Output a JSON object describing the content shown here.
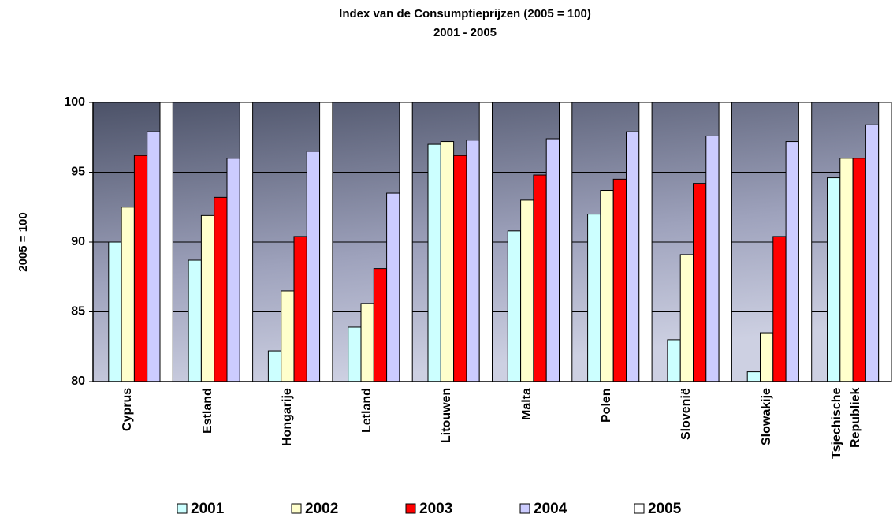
{
  "chart_data": {
    "type": "bar",
    "title": "Index van de Consumptieprijzen (2005 = 100)",
    "subtitle": "2001 - 2005",
    "y_label": "2005 = 100",
    "categories": [
      "Cyprus",
      "Estland",
      "Hongarije",
      "Letland",
      "Litouwen",
      "Malta",
      "Polen",
      "Slovenië",
      "Slowakije",
      "Tsjechische Republiek"
    ],
    "series": [
      {
        "name": "2001",
        "color": "#ccffff",
        "values": [
          90.0,
          88.7,
          82.2,
          83.9,
          97.0,
          90.8,
          92.0,
          83.0,
          80.7,
          94.6
        ]
      },
      {
        "name": "2002",
        "color": "#ffffcc",
        "values": [
          92.5,
          91.9,
          86.5,
          85.6,
          97.2,
          93.0,
          93.7,
          89.1,
          83.5,
          96.0
        ]
      },
      {
        "name": "2003",
        "color": "#ff0000",
        "values": [
          96.2,
          93.2,
          90.4,
          88.1,
          96.2,
          94.8,
          94.5,
          94.2,
          90.4,
          96.0
        ]
      },
      {
        "name": "2004",
        "color": "#ccccff",
        "values": [
          97.9,
          96.0,
          96.5,
          93.5,
          97.3,
          97.4,
          97.9,
          97.6,
          97.2,
          98.4
        ]
      },
      {
        "name": "2005",
        "color": "#ffffff",
        "values": [
          100,
          100,
          100,
          100,
          100,
          100,
          100,
          100,
          100,
          100
        ]
      }
    ],
    "ylim": [
      80,
      100
    ],
    "yticks": [
      80,
      85,
      90,
      95,
      100
    ],
    "grid": true,
    "legend": "bottom"
  }
}
